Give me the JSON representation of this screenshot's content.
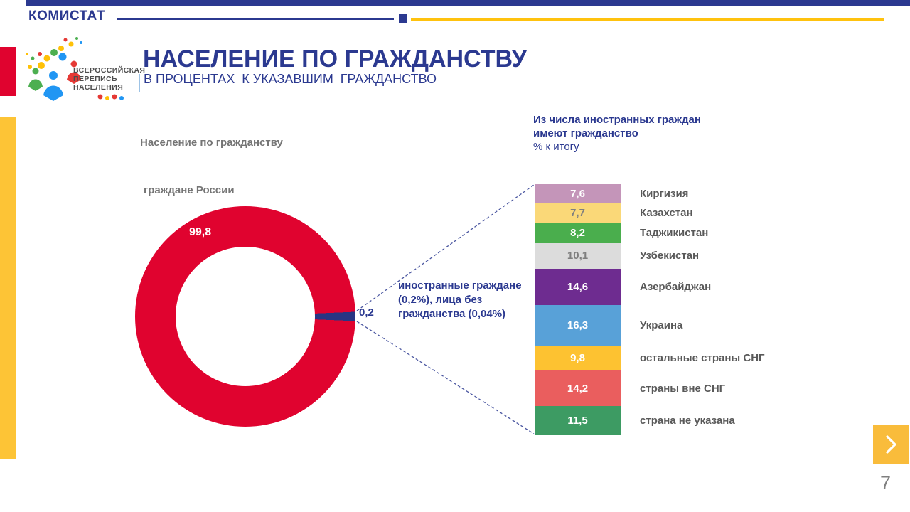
{
  "brand": "КОМИСТАТ",
  "logo": {
    "line1": "ВСЕРОССИЙСКАЯ",
    "line2": "ПЕРЕПИСЬ",
    "line3": "НАСЕЛЕНИЯ"
  },
  "title": "НАСЕЛЕНИЕ ПО ГРАЖДАНСТВУ",
  "subtitle": "В ПРОЦЕНТАХ  К УКАЗАВШИМ  ГРАЖДАНСТВО",
  "left_chart_heading": "Население по гражданству",
  "donut_caption": "граждане России",
  "right_heading": {
    "line1": "Из числа иностранных граждан",
    "line2": "имеют гражданство",
    "line3": "% к итогу"
  },
  "callout": {
    "line1": "иностранные граждане (0,2%),",
    "line2": "лица без гражданства (0,04%)"
  },
  "colors": {
    "navy": "#2B3990",
    "wedge_navy": "#283583",
    "red": "#E0032F",
    "yellow_line": "#FFC20E",
    "yellow_strip": "#FDC436",
    "button_yellow": "#F9BC3B"
  },
  "chart_data": [
    {
      "type": "pie",
      "donut": true,
      "title": "Население по гражданству",
      "slices": [
        {
          "label": "граждане России",
          "value": 99.8,
          "value_text": "99,8",
          "color": "#E0032F"
        },
        {
          "label": "иностранные граждане (0,2%), лица без гражданства (0,04%)",
          "value": 0.2,
          "value_text": "0,2",
          "color": "#283583"
        }
      ]
    },
    {
      "type": "stacked-bar",
      "title": "Из числа иностранных граждан имеют гражданство, % к итогу",
      "total": 100,
      "segments": [
        {
          "label": "Киргизия",
          "value": 7.6,
          "value_text": "7,6",
          "color": "#C495B9",
          "text_color": "#FFFFFF"
        },
        {
          "label": "Казахстан",
          "value": 7.7,
          "value_text": "7,7",
          "color": "#FAD878",
          "text_color": "#7F7F7F"
        },
        {
          "label": "Таджикистан",
          "value": 8.2,
          "value_text": "8,2",
          "color": "#4AAE4D",
          "text_color": "#FFFFFF"
        },
        {
          "label": "Узбекистан",
          "value": 10.1,
          "value_text": "10,1",
          "color": "#DCDCDC",
          "text_color": "#7F7F7F"
        },
        {
          "label": "Азербайджан",
          "value": 14.6,
          "value_text": "14,6",
          "color": "#6E2C90",
          "text_color": "#FFFFFF"
        },
        {
          "label": "Украина",
          "value": 16.3,
          "value_text": "16,3",
          "color": "#58A1D8",
          "text_color": "#FFFFFF"
        },
        {
          "label": "остальные страны СНГ",
          "value": 9.8,
          "value_text": "9,8",
          "color": "#FDC231",
          "text_color": "#FFFFFF"
        },
        {
          "label": "страны вне СНГ",
          "value": 14.2,
          "value_text": "14,2",
          "color": "#EA5E5E",
          "text_color": "#FFFFFF"
        },
        {
          "label": "страна не указана",
          "value": 11.5,
          "value_text": "11,5",
          "color": "#3D9B63",
          "text_color": "#FFFFFF"
        }
      ]
    }
  ],
  "footer": {
    "next_icon": "chevron-right",
    "page_number": "7"
  }
}
